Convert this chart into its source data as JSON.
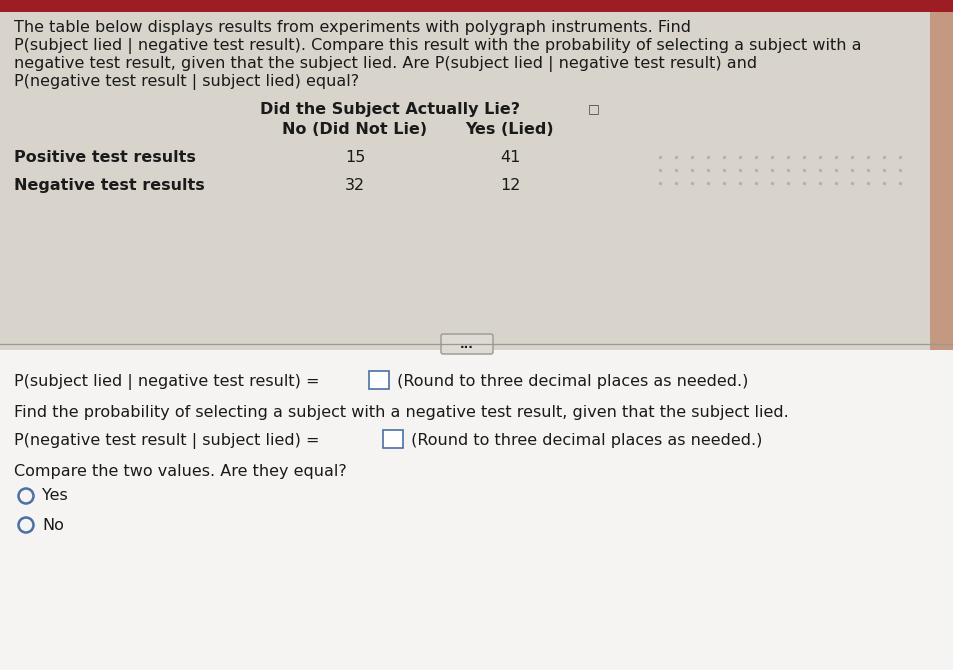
{
  "bg_color_top": "#d8d4cc",
  "bg_color_bottom": "#f5f4f2",
  "bg_color_full": "#d0ccc4",
  "border_color": "#9e1c24",
  "text_color": "#1a1a1a",
  "table_bg": "#d8d4cc",
  "bottom_bg": "#f5f4f2",
  "header_line1": "The table below displays results from experiments with polygraph instruments. Find",
  "header_line2": "P(subject lied | negative test result). Compare this result with the probability of selecting a subject with a",
  "header_line3": "negative test result, given that the subject lied. Are P(subject lied | negative test result) and",
  "header_line4": "P(negative test result | subject lied) equal?",
  "table_header_main": "Did the Subject Actually Lie?",
  "table_col1": "No (Did Not Lie)",
  "table_col2": "Yes (Lied)",
  "row1_label": "Positive test results",
  "row2_label": "Negative test results",
  "row1_val1": "15",
  "row1_val2": "41",
  "row2_val1": "32",
  "row2_val2": "12",
  "divider_text": "...",
  "q1_text": "P(subject lied | negative test result) =",
  "q1_suffix": " (Round to three decimal places as needed.)",
  "q2_intro": "Find the probability of selecting a subject with a negative test result, given that the subject lied.",
  "q2_text": "P(negative test result | subject lied) =",
  "q2_suffix": " (Round to three decimal places as needed.)",
  "compare_text": "Compare the two values. Are they equal?",
  "option_yes": "Yes",
  "option_no": "No",
  "dot_color": "#b0aca4",
  "divider_line_color": "#999990",
  "box_border_color": "#4a6fa5",
  "radio_color": "#4a6fa5"
}
